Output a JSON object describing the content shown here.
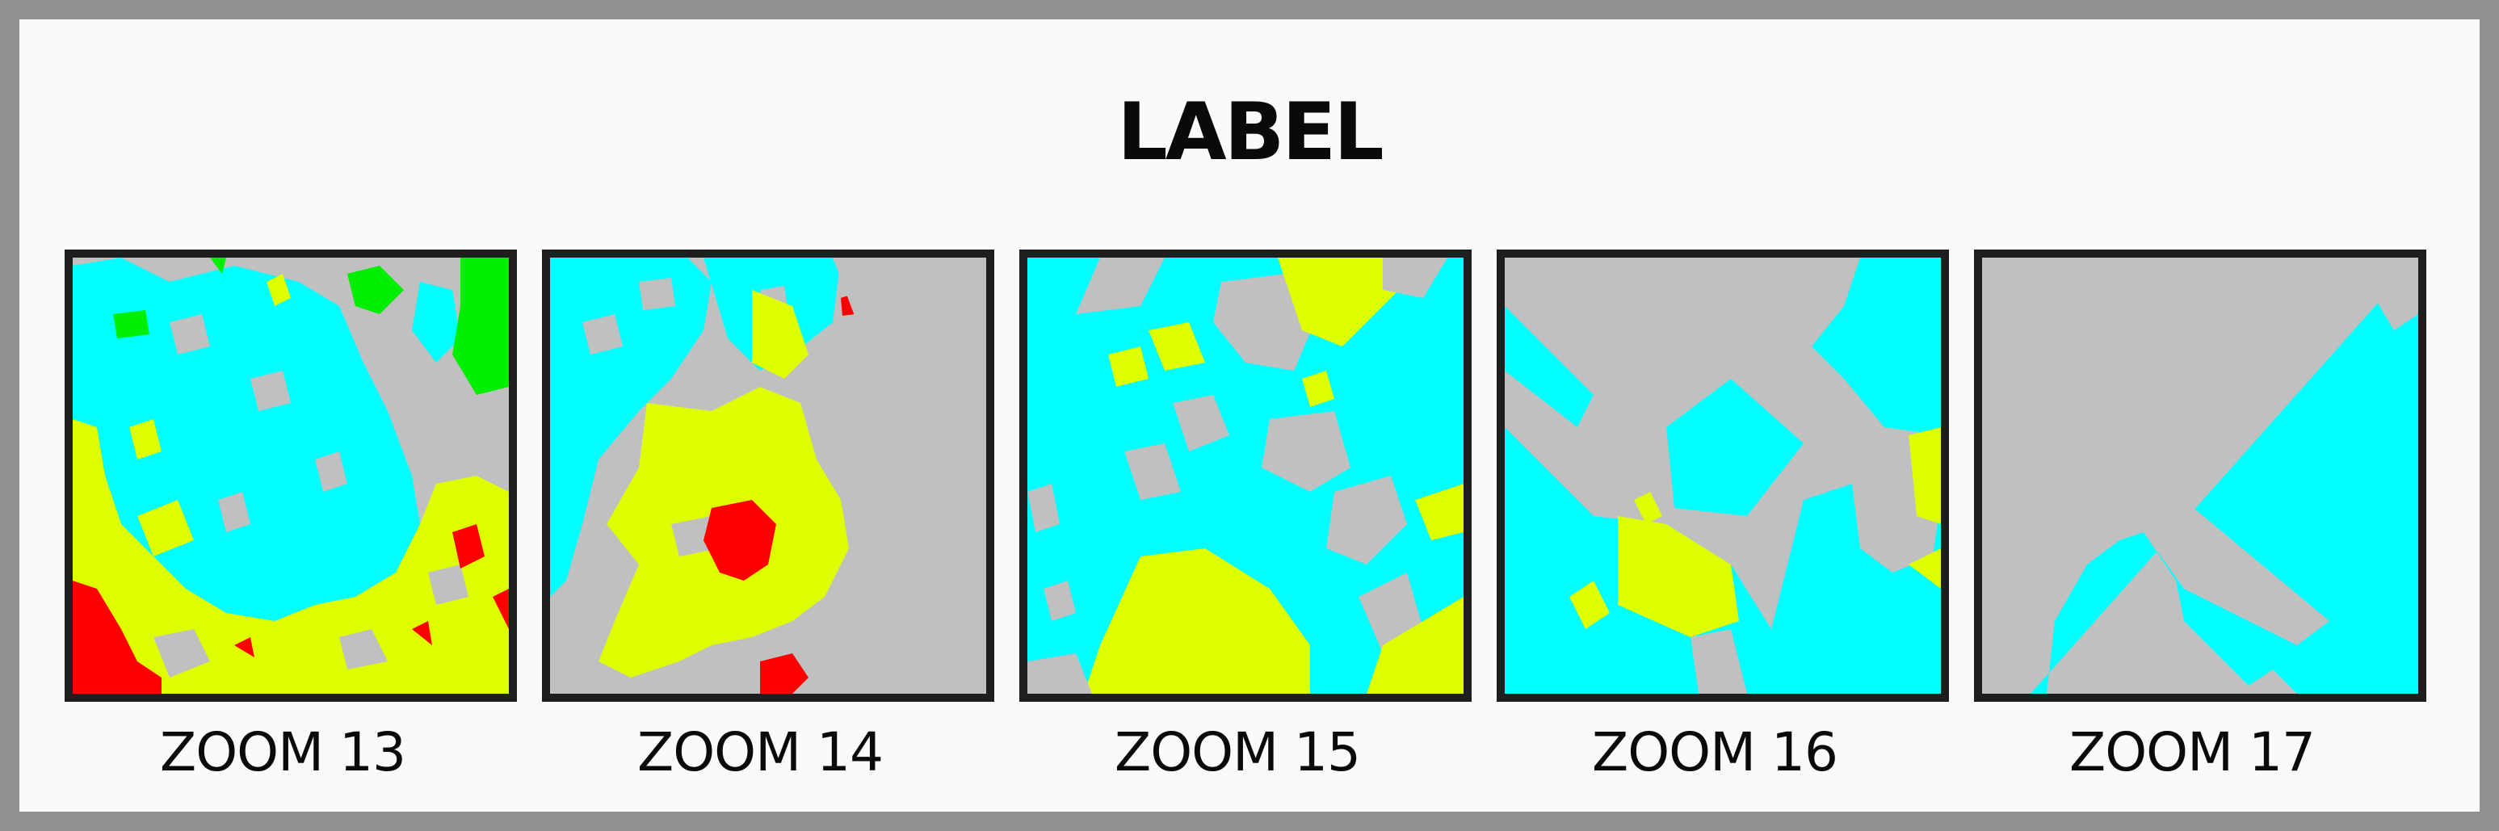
{
  "title": "LABEL",
  "colors": {
    "background": "#c0c0c0",
    "cyan": "#00ffff",
    "yellow": "#ddff00",
    "red": "#ff0000",
    "green": "#00ee00",
    "border": "#1e1e1e"
  },
  "panels": [
    {
      "caption": "ZOOM 13"
    },
    {
      "caption": "ZOOM 14"
    },
    {
      "caption": "ZOOM 15"
    },
    {
      "caption": "ZOOM 16"
    },
    {
      "caption": "ZOOM 17"
    }
  ]
}
